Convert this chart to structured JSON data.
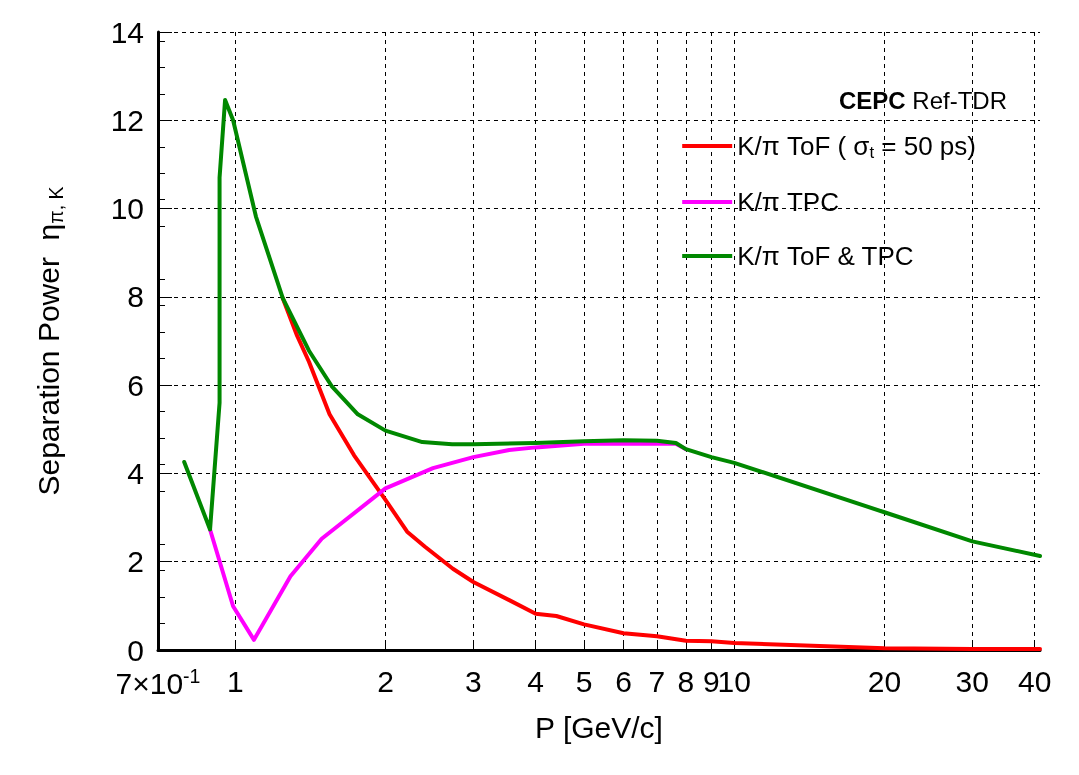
{
  "chart_data": {
    "type": "line",
    "xlabel": "P [GeV/c]",
    "ylabel": "Separation Power  η$_{π, K}$",
    "annotations": [
      "CEPC Ref-TDR"
    ],
    "xlim": [
      0.7,
      41
    ],
    "ylim": [
      0,
      14
    ],
    "xticks": [
      {
        "value": 0.7,
        "label": "7×10$^{-1}$"
      },
      1,
      2,
      3,
      4,
      5,
      6,
      7,
      8,
      9,
      10,
      20,
      30,
      40
    ],
    "yticks": [
      0,
      2,
      4,
      6,
      8,
      10,
      12,
      14
    ],
    "log": "x",
    "grid": true,
    "legend": "top right",
    "marker": "none",
    "line_style": "solid",
    "series": [
      {
        "name": "K/π ToF ( σ$_{t}$ = 50 ps)",
        "color": "#ff0000",
        "x": [
          1.245,
          1.33,
          1.405,
          1.545,
          1.73,
          2,
          2.21,
          2.4,
          2.73,
          3,
          3.54,
          4,
          4.4,
          5,
          6,
          7,
          8,
          9,
          10,
          20,
          30,
          41
        ],
        "values": [
          7.97,
          7.12,
          6.53,
          5.34,
          4.41,
          3.4,
          2.68,
          2.34,
          1.84,
          1.54,
          1.13,
          0.82,
          0.77,
          0.58,
          0.38,
          0.31,
          0.21,
          0.2,
          0.16,
          0.04,
          0.02,
          0.02
        ]
      },
      {
        "name": "K/π TPC",
        "color": "#ff00ff",
        "x": [
          0.89,
          0.99,
          1.09,
          1.29,
          1.49,
          2,
          2.49,
          3,
          3.54,
          4,
          5,
          6,
          7,
          7.64,
          8
        ],
        "values": [
          2.73,
          0.99,
          0.23,
          1.67,
          2.52,
          3.66,
          4.12,
          4.37,
          4.53,
          4.59,
          4.67,
          4.67,
          4.67,
          4.67,
          4.55
        ]
      },
      {
        "name": "K/π ToF & TPC",
        "color": "#008800",
        "x": [
          0.79,
          0.89,
          0.93,
          0.93,
          0.954,
          0.99,
          1.1,
          1.245,
          1.405,
          1.56,
          1.76,
          2,
          2.37,
          2.72,
          3,
          4,
          5,
          6,
          7,
          7.64,
          8,
          9,
          10,
          20,
          30,
          41
        ],
        "values": [
          4.26,
          2.73,
          5.6,
          10.7,
          12.46,
          12.0,
          9.82,
          7.97,
          6.78,
          5.98,
          5.34,
          4.97,
          4.71,
          4.66,
          4.66,
          4.69,
          4.73,
          4.75,
          4.74,
          4.69,
          4.55,
          4.37,
          4.24,
          3.12,
          2.46,
          2.13
        ]
      }
    ]
  }
}
